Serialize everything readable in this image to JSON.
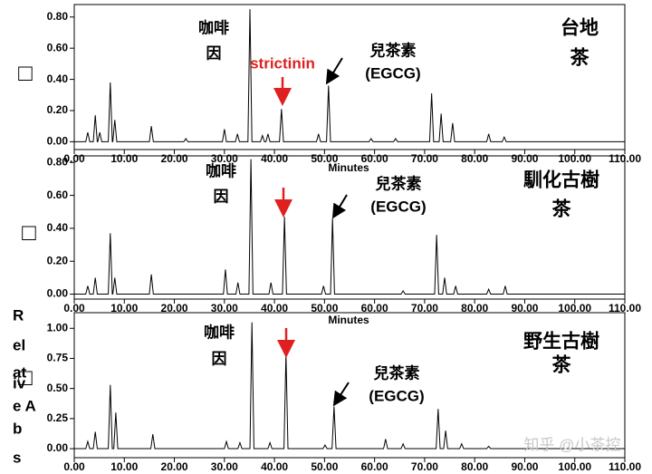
{
  "chart_data": [
    {
      "type": "line",
      "x_label": "Minutes",
      "y_label": "□",
      "caffeine_label": [
        "咖啡",
        "因"
      ],
      "egcg_label": [
        "兒茶素",
        "(EGCG)"
      ],
      "tea_label": [
        "台地",
        "茶"
      ],
      "strictinin_label": "strictinin",
      "strictinin_color": "#e02020",
      "xlim": [
        0,
        110
      ],
      "ylim": [
        -0.05,
        0.88
      ],
      "xticks": [
        {
          "value": 0,
          "label": "0.00"
        },
        {
          "value": 10,
          "label": "10.00"
        },
        {
          "value": 20,
          "label": "20.00"
        },
        {
          "value": 30,
          "label": "30.00"
        },
        {
          "value": 40,
          "label": "40.00"
        },
        {
          "value": 50,
          "label": "50.00"
        },
        {
          "value": 60,
          "label": "60.00"
        },
        {
          "value": 70,
          "label": "70.00"
        },
        {
          "value": 80,
          "label": "80.00"
        },
        {
          "value": 90,
          "label": "90.00"
        },
        {
          "value": 100,
          "label": "100.00"
        },
        {
          "value": 110,
          "label": "110.00"
        }
      ],
      "yticks": [
        {
          "value": 0,
          "label": "0.00"
        },
        {
          "value": 0.2,
          "label": "0.20"
        },
        {
          "value": 0.4,
          "label": "0.40"
        },
        {
          "value": 0.6,
          "label": "0.60"
        },
        {
          "value": 0.8,
          "label": "0.80"
        }
      ],
      "series": [
        {
          "color": "#000000",
          "x": [
            0,
            2.3,
            2.7,
            3.1,
            3.8,
            4.2,
            4.6,
            4.7,
            5.1,
            5.5,
            6.8,
            7.2,
            7.6,
            7.7,
            8.1,
            8.5,
            15.0,
            15.4,
            15.8,
            21.9,
            22.3,
            22.7,
            29.6,
            30.0,
            30.4,
            32.2,
            32.6,
            33.0,
            34.7,
            35.1,
            35.5,
            37.2,
            37.6,
            38.0,
            38.3,
            38.7,
            39.1,
            41.0,
            41.4,
            41.8,
            48.4,
            48.8,
            49.2,
            50.4,
            50.8,
            51.2,
            58.9,
            59.3,
            59.7,
            63.8,
            64.2,
            64.6,
            71.0,
            71.4,
            71.8,
            72.9,
            73.3,
            73.7,
            75.2,
            75.6,
            76.0,
            82.4,
            82.8,
            83.2,
            85.5,
            85.9,
            86.3,
            110
          ],
          "values": [
            0,
            0,
            0.06,
            0,
            0,
            0.17,
            0,
            0,
            0.06,
            0,
            0,
            0.38,
            0,
            0,
            0.14,
            0,
            0,
            0.1,
            0,
            0,
            0.02,
            0,
            0,
            0.08,
            0,
            0,
            0.05,
            0,
            0,
            0.85,
            0,
            0,
            0.04,
            0,
            0,
            0.05,
            0,
            0,
            0.21,
            0,
            0,
            0.05,
            0,
            0,
            0.36,
            0,
            0,
            0.02,
            0,
            0,
            0.02,
            0,
            0,
            0.31,
            0,
            0,
            0.18,
            0,
            0,
            0.12,
            0,
            0,
            0.05,
            0,
            0,
            0.03,
            0,
            0
          ]
        }
      ]
    },
    {
      "type": "line",
      "x_label": "Minutes",
      "y_label": "□",
      "caffeine_label": [
        "咖啡",
        "因"
      ],
      "egcg_label": [
        "兒茶素",
        "(EGCG)"
      ],
      "tea_label": [
        "馴化古樹",
        "茶"
      ],
      "xlim": [
        0,
        110
      ],
      "ylim": [
        -0.03,
        0.84
      ],
      "xticks": [
        {
          "value": 0,
          "label": "0.00"
        },
        {
          "value": 10,
          "label": "10.00"
        },
        {
          "value": 20,
          "label": "20.00"
        },
        {
          "value": 30,
          "label": "30.00"
        },
        {
          "value": 40,
          "label": "40.00"
        },
        {
          "value": 50,
          "label": "50.00"
        },
        {
          "value": 60,
          "label": "60.00"
        },
        {
          "value": 70,
          "label": "70.00"
        },
        {
          "value": 80,
          "label": "80.00"
        },
        {
          "value": 90,
          "label": "90.00"
        },
        {
          "value": 100,
          "label": "100.00"
        },
        {
          "value": 110,
          "label": "110.00"
        }
      ],
      "yticks": [
        {
          "value": 0,
          "label": "0.00"
        },
        {
          "value": 0.2,
          "label": "0.20"
        },
        {
          "value": 0.4,
          "label": "0.40"
        },
        {
          "value": 0.6,
          "label": "0.60"
        },
        {
          "value": 0.8,
          "label": "0.80"
        }
      ],
      "series": [
        {
          "color": "#000000",
          "x": [
            0,
            2.3,
            2.7,
            3.1,
            3.8,
            4.2,
            4.6,
            6.8,
            7.2,
            7.6,
            7.7,
            8.1,
            8.5,
            15.0,
            15.4,
            15.8,
            29.8,
            30.2,
            30.6,
            32.3,
            32.7,
            33.1,
            34.9,
            35.3,
            35.7,
            38.9,
            39.3,
            39.7,
            41.6,
            42.0,
            42.4,
            49.4,
            49.8,
            50.2,
            51.2,
            51.6,
            52.0,
            65.3,
            65.7,
            66.1,
            72.0,
            72.4,
            72.8,
            73.6,
            74.0,
            74.4,
            75.8,
            76.2,
            76.6,
            82.4,
            82.8,
            83.2,
            85.7,
            86.1,
            86.5,
            110
          ],
          "values": [
            0,
            0,
            0.05,
            0,
            0,
            0.1,
            0,
            0,
            0.37,
            0,
            0,
            0.1,
            0,
            0,
            0.12,
            0,
            0,
            0.15,
            0,
            0,
            0.07,
            0,
            0,
            0.82,
            0,
            0,
            0.07,
            0,
            0,
            0.47,
            0,
            0,
            0.05,
            0,
            0,
            0.46,
            0,
            0,
            0.02,
            0,
            0,
            0.36,
            0,
            0,
            0.1,
            0,
            0,
            0.05,
            0,
            0,
            0.03,
            0,
            0,
            0.05,
            0,
            0
          ]
        }
      ]
    },
    {
      "type": "line",
      "y_label_lines": [
        "R",
        "el",
        "at",
        "iv",
        "e A",
        "b",
        "s"
      ],
      "y_label": "□",
      "caffeine_label": [
        "咖啡",
        "因"
      ],
      "egcg_label": [
        "兒茶素",
        "(EGCG)"
      ],
      "tea_label": [
        "野生古樹",
        "茶"
      ],
      "watermark": "知乎 @小茶控",
      "xlim": [
        0,
        110
      ],
      "ylim": [
        -0.075,
        1.13
      ],
      "xticks": [
        {
          "value": 0,
          "label": "0.00"
        },
        {
          "value": 10,
          "label": "10.00"
        },
        {
          "value": 20,
          "label": "20.00"
        },
        {
          "value": 30,
          "label": "30.00"
        },
        {
          "value": 40,
          "label": "40.00"
        },
        {
          "value": 50,
          "label": "50.00"
        },
        {
          "value": 60,
          "label": "60.00"
        },
        {
          "value": 70,
          "label": "70.00"
        },
        {
          "value": 80,
          "label": "80.00"
        },
        {
          "value": 90,
          "label": "90.00"
        },
        {
          "value": 100,
          "label": "100.00"
        },
        {
          "value": 110,
          "label": "110.00"
        }
      ],
      "yticks": [
        {
          "value": 0,
          "label": "0.00"
        },
        {
          "value": 0.25,
          "label": "0.25"
        },
        {
          "value": 0.5,
          "label": "0.50"
        },
        {
          "value": 0.75,
          "label": "0.75"
        },
        {
          "value": 1,
          "label": "1.00"
        }
      ],
      "series": [
        {
          "color": "#000000",
          "x": [
            0,
            2.3,
            2.7,
            3.1,
            3.8,
            4.2,
            4.6,
            6.8,
            7.2,
            7.6,
            7.9,
            8.3,
            8.7,
            15.3,
            15.7,
            16.1,
            30.0,
            30.4,
            30.8,
            32.7,
            33.1,
            33.5,
            35.1,
            35.5,
            35.9,
            38.7,
            39.1,
            39.5,
            41.9,
            42.3,
            42.7,
            49.7,
            50.1,
            50.5,
            51.5,
            51.9,
            52.3,
            61.8,
            62.2,
            62.6,
            65.3,
            65.7,
            66.1,
            72.3,
            72.7,
            73.1,
            73.8,
            74.2,
            74.6,
            77.0,
            77.4,
            77.8,
            82.4,
            82.8,
            83.2,
            110
          ],
          "values": [
            0,
            0,
            0.06,
            0,
            0,
            0.14,
            0,
            0,
            0.53,
            0,
            0,
            0.3,
            0,
            0,
            0.12,
            0,
            0,
            0.06,
            0,
            0,
            0.05,
            0,
            0,
            1.05,
            0,
            0,
            0.05,
            0,
            0,
            0.79,
            0,
            0,
            0.03,
            0,
            0,
            0.35,
            0,
            0,
            0.08,
            0,
            0,
            0.04,
            0,
            0,
            0.33,
            0,
            0,
            0.15,
            0,
            0,
            0.04,
            0,
            0,
            0.02,
            0,
            0
          ]
        }
      ]
    }
  ]
}
